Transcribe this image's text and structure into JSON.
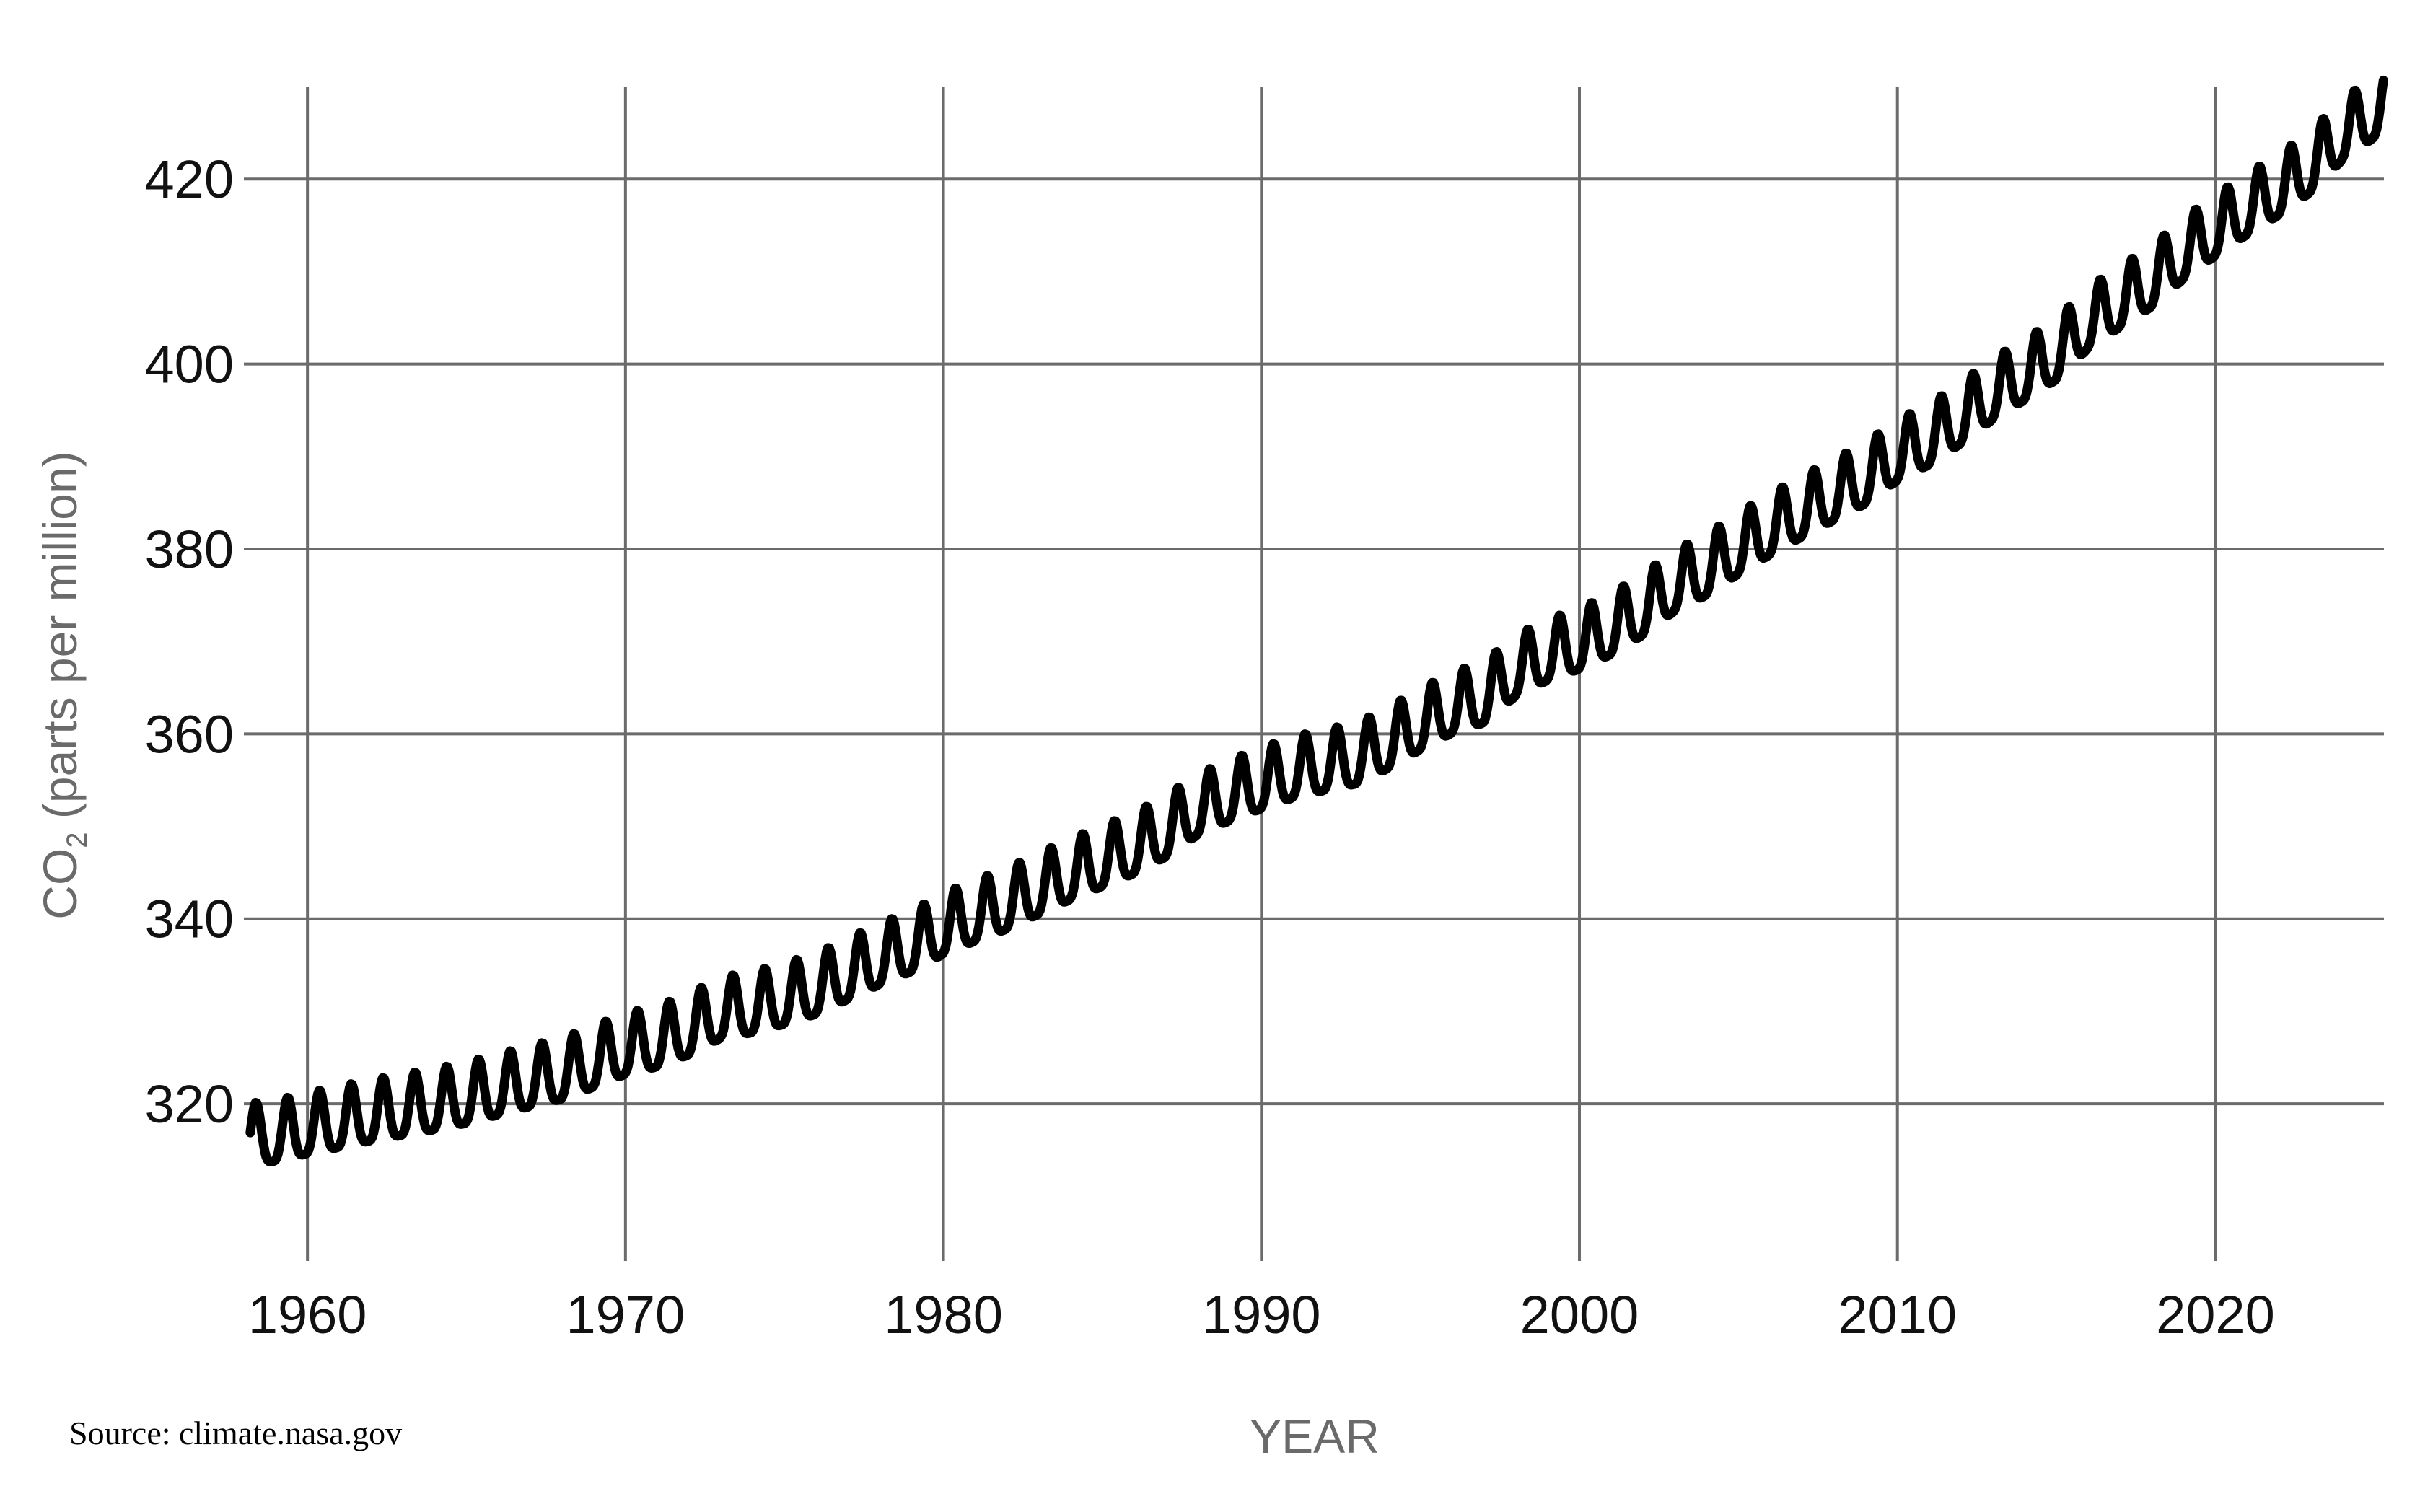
{
  "chart_data": {
    "type": "line",
    "xlabel": "YEAR",
    "ylabel_main": "CO",
    "ylabel_sub": "2",
    "ylabel_rest": " (parts per million)",
    "xlim": [
      1958,
      2025.3
    ],
    "ylim": [
      303,
      430
    ],
    "x_ticks": [
      1960,
      1970,
      1980,
      1990,
      2000,
      2010,
      2020
    ],
    "y_ticks": [
      320,
      340,
      360,
      380,
      400,
      420
    ],
    "grid": true,
    "line_color": "#000000",
    "grid_color": "#6b6b6b",
    "series": [
      {
        "x": [
          1958.0,
          1959.0,
          1960.0,
          1961.0,
          1962.0,
          1963.0,
          1964.0,
          1965.0,
          1966.0,
          1967.0,
          1968.0,
          1969.0,
          1970.0,
          1971.0,
          1972.0,
          1973.0,
          1974.0,
          1975.0,
          1976.0,
          1977.0,
          1978.0,
          1979.0,
          1980.0,
          1981.0,
          1982.0,
          1983.0,
          1984.0,
          1985.0,
          1986.0,
          1987.0,
          1988.0,
          1989.0,
          1990.0,
          1991.0,
          1992.0,
          1993.0,
          1994.0,
          1995.0,
          1996.0,
          1997.0,
          1998.0,
          1999.0,
          2000.0,
          2001.0,
          2002.0,
          2003.0,
          2004.0,
          2005.0,
          2006.0,
          2007.0,
          2008.0,
          2009.0,
          2010.0,
          2011.0,
          2012.0,
          2013.0,
          2014.0,
          2015.0,
          2016.0,
          2017.0,
          2018.0,
          2019.0,
          2020.0,
          2021.0,
          2022.0,
          2023.0,
          2024.0,
          2025.0
        ],
        "values": [
          315.9,
          316.3,
          317.1,
          317.8,
          318.5,
          319.1,
          319.7,
          320.4,
          321.3,
          322.2,
          323.0,
          324.3,
          325.7,
          326.5,
          327.8,
          329.6,
          330.2,
          331.1,
          332.2,
          333.8,
          335.4,
          336.8,
          338.7,
          340.1,
          341.4,
          343.0,
          344.6,
          346.0,
          347.4,
          349.2,
          351.6,
          353.1,
          354.4,
          355.6,
          356.4,
          357.1,
          358.8,
          360.8,
          362.6,
          363.7,
          366.6,
          368.3,
          369.5,
          371.1,
          373.2,
          375.8,
          377.5,
          379.8,
          381.9,
          383.8,
          385.6,
          387.4,
          389.9,
          391.6,
          393.9,
          396.5,
          398.6,
          400.8,
          404.2,
          406.5,
          408.7,
          411.7,
          414.2,
          416.5,
          418.6,
          421.1,
          424.6,
          427.0
        ],
        "seasonal_amplitude_ppm": 3.3
      }
    ]
  },
  "source": "Source: climate.nasa.gov"
}
